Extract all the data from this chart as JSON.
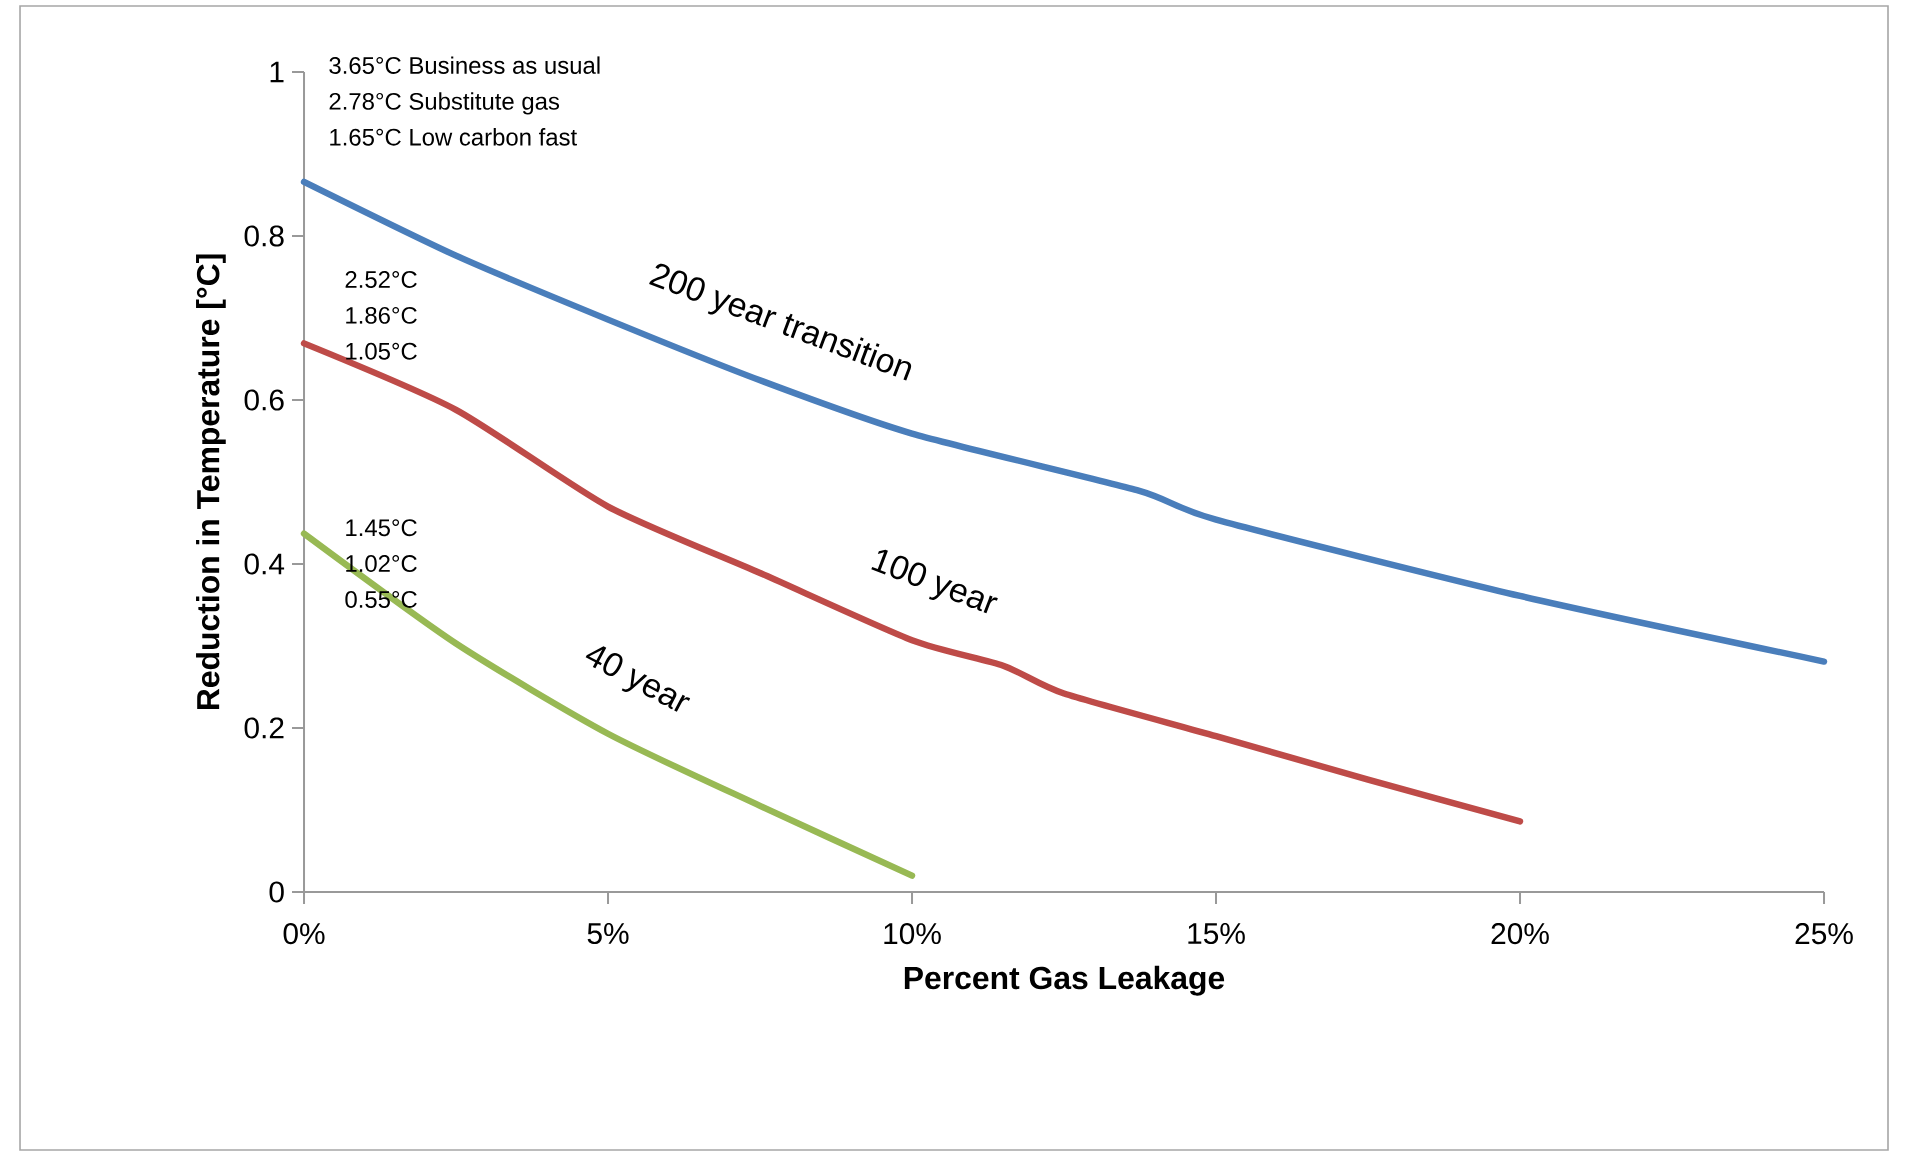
{
  "chart_data": {
    "type": "line",
    "xlabel": "Percent Gas Leakage",
    "ylabel": "Reduction in Temperature [°C]",
    "xlim": [
      0,
      25
    ],
    "ylim": [
      0,
      1
    ],
    "xticks": [
      {
        "value": 0,
        "label": "0%"
      },
      {
        "value": 5,
        "label": "5%"
      },
      {
        "value": 10,
        "label": "10%"
      },
      {
        "value": 15,
        "label": "15%"
      },
      {
        "value": 20,
        "label": "20%"
      },
      {
        "value": 25,
        "label": "25%"
      }
    ],
    "yticks": [
      0,
      0.2,
      0.4,
      0.6,
      0.8,
      1
    ],
    "grid": false,
    "legend": false,
    "marker": "none",
    "line_style": "solid",
    "series": [
      {
        "name": "200 year transition",
        "color": "#4a7ebb",
        "x": [
          0,
          2.5,
          5,
          7.5,
          10,
          13.7,
          15,
          20,
          25
        ],
        "values": [
          0.866,
          0.776,
          0.698,
          0.624,
          0.559,
          0.49,
          0.454,
          0.361,
          0.281
        ]
      },
      {
        "name": "100 year",
        "color": "#be4b48",
        "x": [
          0,
          2.5,
          5,
          7.5,
          10,
          11.5,
          12.5,
          15,
          17.5,
          20
        ],
        "values": [
          0.669,
          0.588,
          0.47,
          0.389,
          0.307,
          0.276,
          0.242,
          0.19,
          0.137,
          0.086
        ]
      },
      {
        "name": "40 year",
        "color": "#98b954",
        "x": [
          0,
          2.5,
          5,
          7.5,
          10
        ],
        "values": [
          0.437,
          0.303,
          0.193,
          0.105,
          0.02
        ]
      }
    ],
    "annotations": [
      "3.65°C Business as usual",
      "2.78°C Substitute gas",
      "1.65°C Low carbon fast",
      "2.52°C",
      "1.86°C",
      "1.05°C",
      "1.45°C",
      "1.02°C",
      "0.55°C"
    ]
  }
}
